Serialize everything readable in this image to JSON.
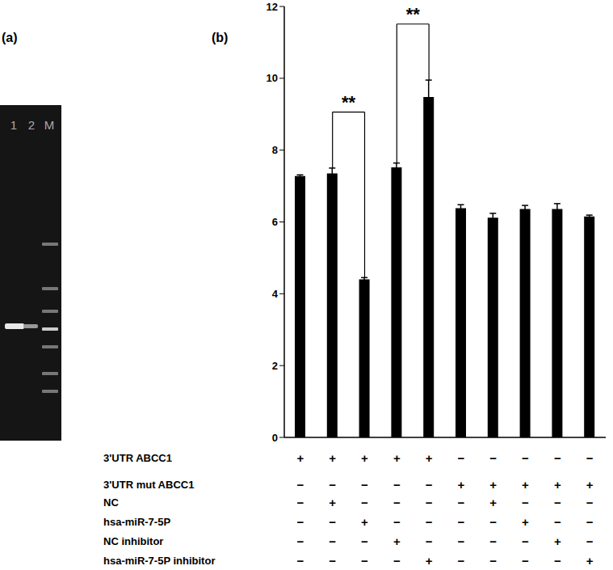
{
  "panel_a": {
    "label": "(a)",
    "lanes": [
      "1",
      "2",
      "M"
    ]
  },
  "chart_data": {
    "type": "bar",
    "panel_label": "(b)",
    "color": "#000000",
    "ylim": [
      0,
      12
    ],
    "yticks": [
      0,
      2,
      4,
      6,
      8,
      10,
      12
    ],
    "values": [
      7.28,
      7.35,
      4.4,
      7.52,
      9.48,
      6.38,
      6.12,
      6.36,
      6.36,
      6.15
    ],
    "errors": [
      0.03,
      0.15,
      0.05,
      0.12,
      0.47,
      0.1,
      0.12,
      0.1,
      0.15,
      0.04
    ],
    "conditions": [
      {
        "label": "3'UTR ABCC1",
        "marks": [
          "+",
          "+",
          "+",
          "+",
          "+",
          "−",
          "−",
          "−",
          "−",
          "−"
        ]
      },
      {
        "label": "3'UTR mut ABCC1",
        "marks": [
          "−",
          "−",
          "−",
          "−",
          "−",
          "+",
          "+",
          "+",
          "+",
          "+"
        ]
      },
      {
        "label": "NC",
        "marks": [
          "−",
          "+",
          "−",
          "−",
          "−",
          "−",
          "+",
          "−",
          "−",
          "−"
        ]
      },
      {
        "label": "hsa-miR-7-5P",
        "marks": [
          "−",
          "−",
          "+",
          "−",
          "−",
          "−",
          "−",
          "+",
          "−",
          "−"
        ]
      },
      {
        "label": "NC inhibitor",
        "marks": [
          "−",
          "−",
          "−",
          "+",
          "−",
          "−",
          "−",
          "−",
          "+",
          "−"
        ]
      },
      {
        "label": "hsa-miR-7-5P inhibitor",
        "marks": [
          "−",
          "−",
          "−",
          "−",
          "+",
          "−",
          "−",
          "−",
          "−",
          "+"
        ]
      }
    ],
    "annotations": [
      {
        "text": "**",
        "from": 1,
        "to": 2
      },
      {
        "text": "**",
        "from": 3,
        "to": 4
      }
    ]
  }
}
